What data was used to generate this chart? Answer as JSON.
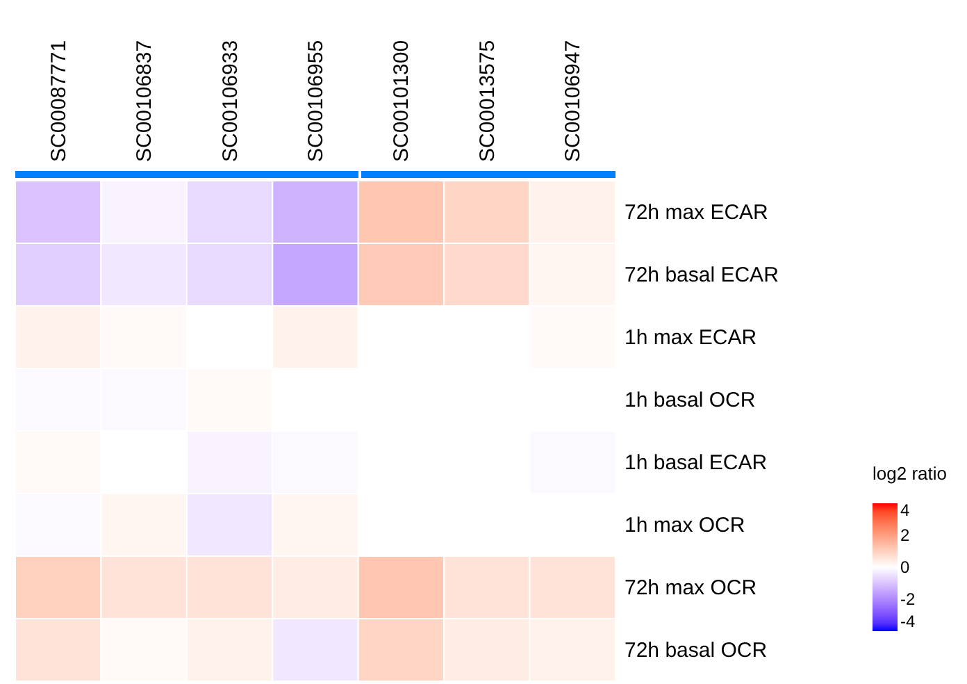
{
  "chart_data": {
    "type": "heatmap",
    "legend_title": "log2 ratio",
    "categories": [
      "SC00087771",
      "SC00106837",
      "SC00106933",
      "SC00106955",
      "SC00101300",
      "SC00013575",
      "SC00106947"
    ],
    "y_categories": [
      "72h max ECAR",
      "72h basal ECAR",
      "1h max ECAR",
      "1h basal OCR",
      "1h basal ECAR",
      "1h max OCR",
      "72h max OCR",
      "72h basal OCR"
    ],
    "cells": [
      [
        -1.0,
        -0.2,
        -0.6,
        -1.3,
        1.2,
        0.9,
        0.3
      ],
      [
        -0.8,
        -0.4,
        -0.6,
        -1.5,
        1.1,
        0.8,
        0.2
      ],
      [
        0.3,
        0.1,
        0.0,
        0.3,
        0.0,
        0.0,
        0.1
      ],
      [
        -0.1,
        -0.1,
        0.1,
        0.0,
        0.0,
        0.0,
        0.0
      ],
      [
        0.1,
        0.0,
        -0.2,
        -0.1,
        0.0,
        0.0,
        -0.1
      ],
      [
        -0.1,
        0.2,
        -0.4,
        0.2,
        0.0,
        0.0,
        0.0
      ],
      [
        1.0,
        0.6,
        0.6,
        0.4,
        1.2,
        0.6,
        0.6
      ],
      [
        0.6,
        0.1,
        0.3,
        -0.4,
        0.9,
        0.4,
        0.3
      ]
    ],
    "clim": [
      -4,
      4
    ],
    "cticks": [
      -4,
      -2,
      0,
      2,
      4
    ],
    "colors": [
      "#0000ff",
      "#ffffff",
      "#ff0000"
    ]
  }
}
